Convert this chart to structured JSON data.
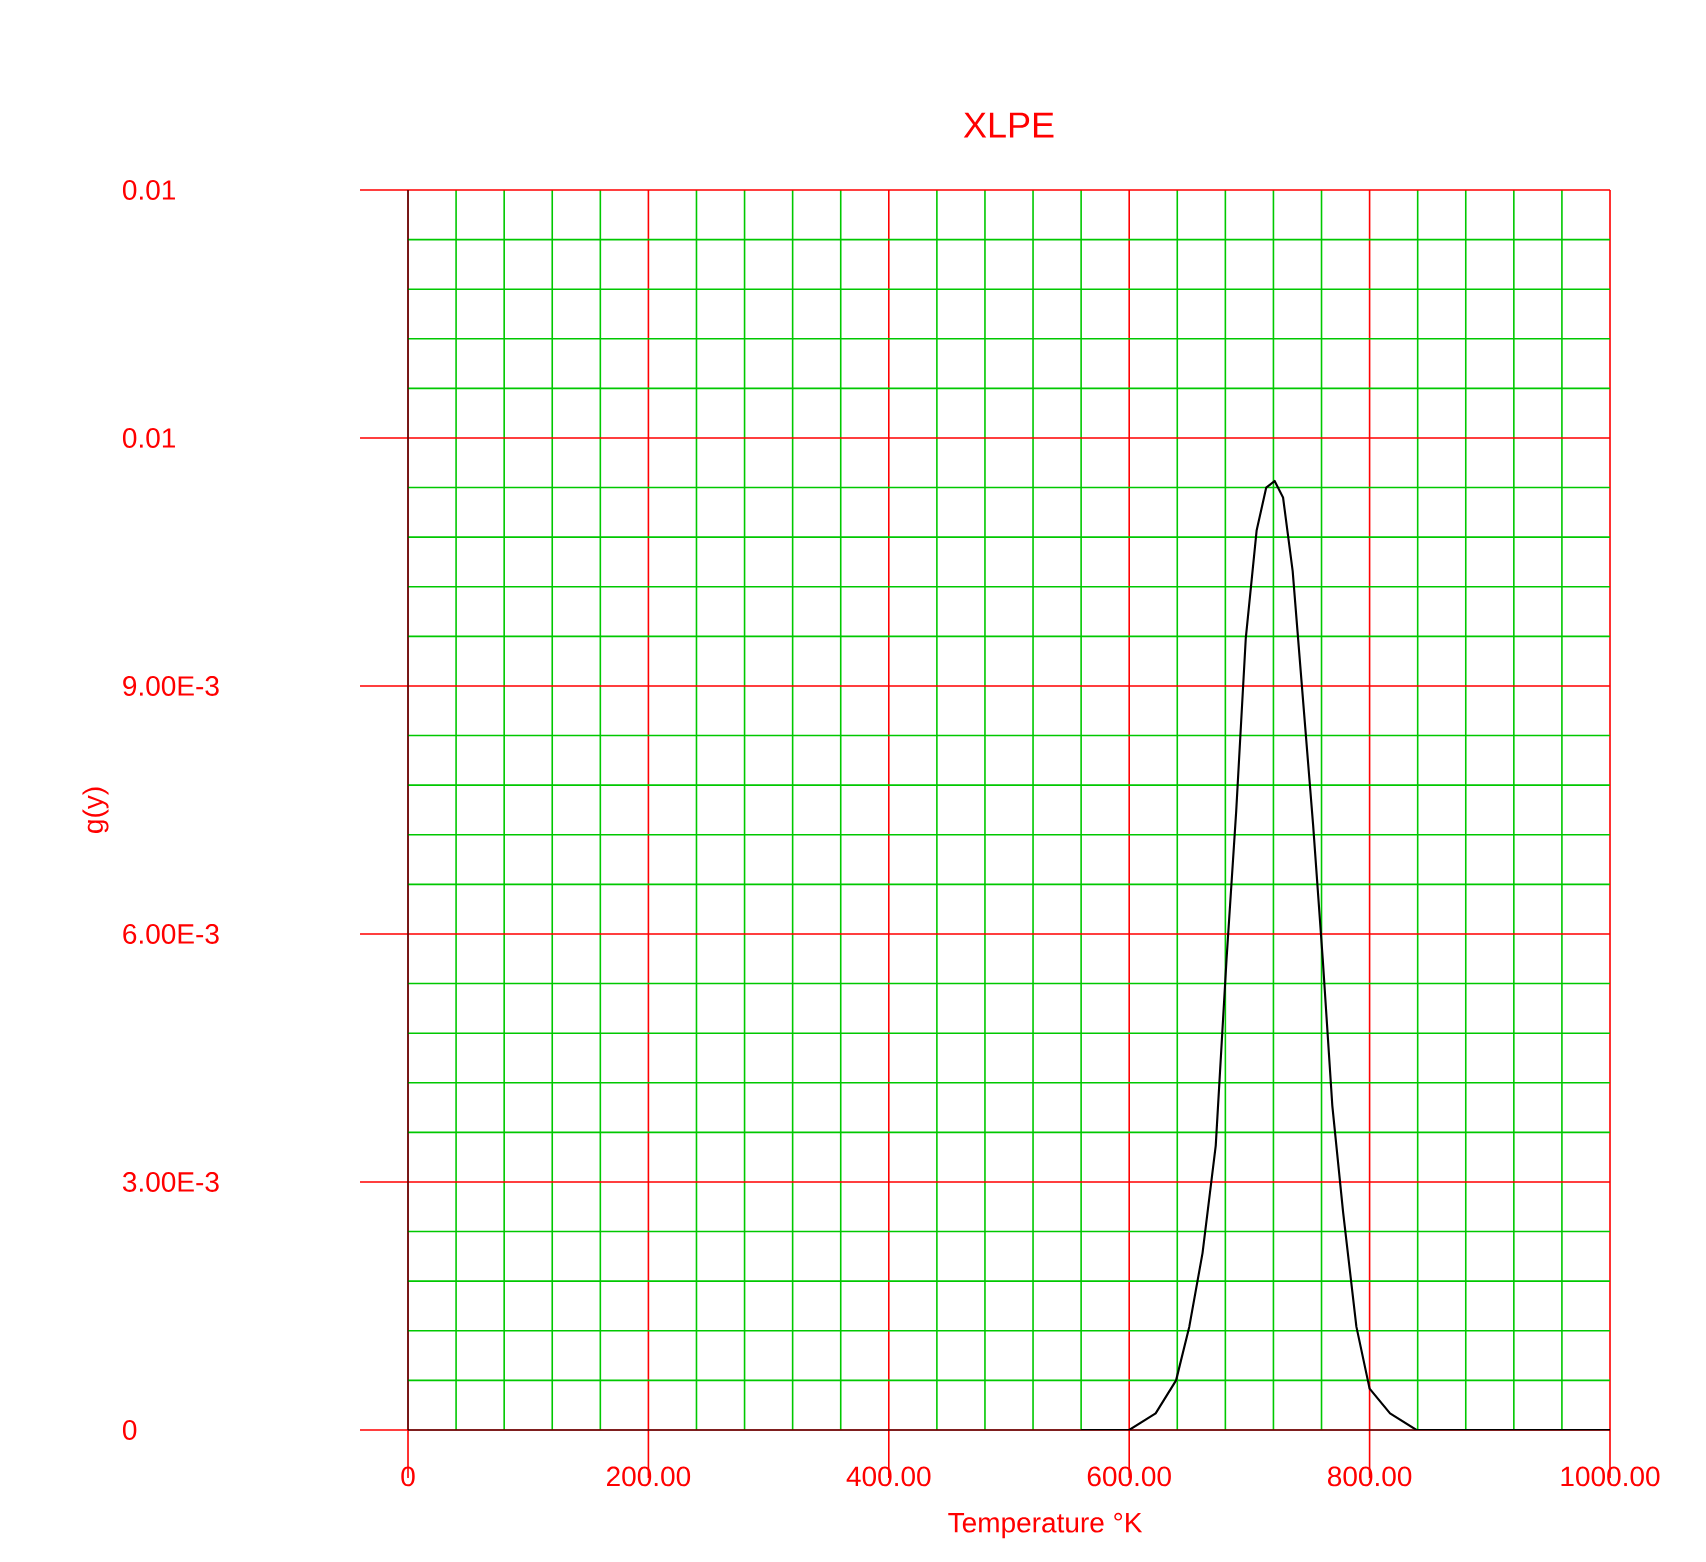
{
  "chart_data": {
    "type": "line",
    "title": "XLPE",
    "xlabel": "Temperature °K",
    "ylabel": "g(y)",
    "x": [
      560,
      578,
      600,
      622,
      639,
      650,
      661,
      672,
      681,
      689,
      697,
      706,
      714,
      721,
      728,
      736,
      744,
      753,
      761,
      769,
      778,
      789,
      800,
      817,
      839,
      867,
      900,
      1000
    ],
    "series": [
      {
        "color": "#000000",
        "values": [
          0,
          0,
          0,
          0.0002,
          0.0006,
          0.00125,
          0.00214,
          0.00344,
          0.0057,
          0.00748,
          0.00958,
          0.01088,
          0.0114,
          0.01148,
          0.01128,
          0.01039,
          0.00894,
          0.00732,
          0.0057,
          0.00392,
          0.00263,
          0.00125,
          0.0005,
          0.0002,
          0,
          0,
          0,
          0
        ]
      }
    ],
    "xlim": [
      0,
      1000
    ],
    "ylim": [
      0,
      0.015
    ],
    "xticks": [
      0,
      {
        "value": 40,
        "label": null
      },
      {
        "value": 80,
        "label": null
      },
      {
        "value": 120,
        "label": null
      },
      {
        "value": 160,
        "label": null
      },
      {
        "value": 200,
        "label": "200.00"
      },
      {
        "value": 240,
        "label": null
      },
      {
        "value": 280,
        "label": null
      },
      {
        "value": 320,
        "label": null
      },
      {
        "value": 360,
        "label": null
      },
      {
        "value": 400,
        "label": "400.00"
      },
      {
        "value": 440,
        "label": null
      },
      {
        "value": 480,
        "label": null
      },
      {
        "value": 520,
        "label": null
      },
      {
        "value": 560,
        "label": null
      },
      {
        "value": 600,
        "label": "600.00"
      },
      {
        "value": 640,
        "label": null
      },
      {
        "value": 680,
        "label": null
      },
      {
        "value": 720,
        "label": null
      },
      {
        "value": 760,
        "label": null
      },
      {
        "value": 800,
        "label": "800.00"
      },
      {
        "value": 840,
        "label": null
      },
      {
        "value": 880,
        "label": null
      },
      {
        "value": 920,
        "label": null
      },
      {
        "value": 960,
        "label": null
      },
      {
        "value": 1000,
        "label": "1000.00"
      }
    ],
    "yticks": [
      0,
      {
        "value": 0.0006,
        "label": null
      },
      {
        "value": 0.0012,
        "label": null
      },
      {
        "value": 0.0018,
        "label": null
      },
      {
        "value": 0.0024,
        "label": null
      },
      {
        "value": 0.003,
        "label": "3.00E-3"
      },
      {
        "value": 0.0036,
        "label": null
      },
      {
        "value": 0.0042,
        "label": null
      },
      {
        "value": 0.0048,
        "label": null
      },
      {
        "value": 0.0054,
        "label": null
      },
      {
        "value": 0.006,
        "label": "6.00E-3"
      },
      {
        "value": 0.0066,
        "label": null
      },
      {
        "value": 0.0072,
        "label": null
      },
      {
        "value": 0.0078,
        "label": null
      },
      {
        "value": 0.0084,
        "label": null
      },
      {
        "value": 0.009,
        "label": "9.00E-3"
      },
      {
        "value": 0.0096,
        "label": null
      },
      {
        "value": 0.0102,
        "label": null
      },
      {
        "value": 0.0108,
        "label": null
      },
      {
        "value": 0.0114,
        "label": null
      },
      {
        "value": 0.012,
        "label": "0.01"
      },
      {
        "value": 0.0126,
        "label": null
      },
      {
        "value": 0.0132,
        "label": null
      },
      {
        "value": 0.0138,
        "label": null
      },
      {
        "value": 0.0144,
        "label": null
      },
      {
        "value": 0.015,
        "label": "0.01"
      }
    ],
    "grid": true,
    "marker": "none",
    "line_style": "solid",
    "legend": false
  }
}
